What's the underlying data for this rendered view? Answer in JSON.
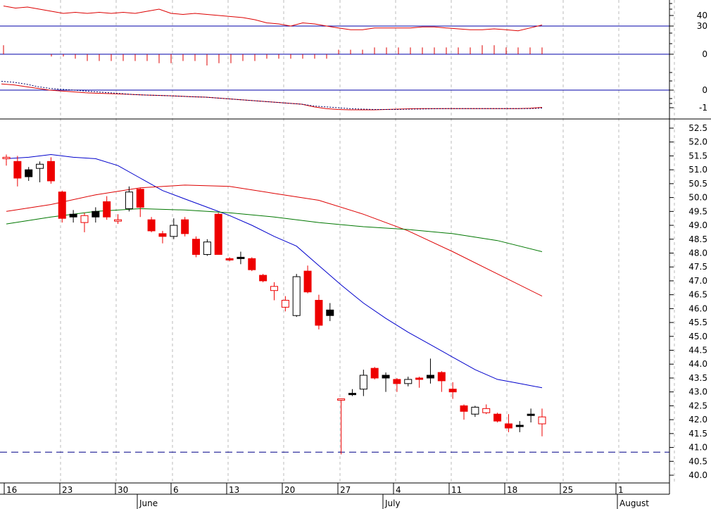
{
  "chart_data": [
    {
      "type": "line",
      "panel": "indicator-top",
      "y_ticks": [
        40,
        30,
        0
      ],
      "reference_lines": [
        30,
        0
      ],
      "series": [
        {
          "color": "#dd0000",
          "values": [
            49,
            47,
            48,
            46,
            44,
            42,
            43,
            42,
            43,
            42,
            43,
            42,
            44,
            46,
            42,
            41,
            42,
            41,
            40,
            39,
            38,
            36,
            33,
            32,
            30,
            33,
            32,
            30,
            28,
            26,
            26,
            28,
            28,
            28,
            28,
            29,
            29,
            28,
            27,
            26,
            26,
            27,
            26,
            25,
            28,
            31
          ],
          "column_values": [
            4,
            0,
            0,
            0,
            -1,
            -1,
            -2,
            -3,
            -3,
            -3,
            -3,
            -3,
            -3,
            -4,
            -4,
            -3,
            -3,
            -5,
            -4,
            -4,
            -3,
            -3,
            -2,
            -2,
            -2,
            -2,
            -2,
            -2,
            2,
            2,
            2,
            3,
            3,
            3,
            3,
            3,
            3,
            3,
            3,
            3,
            4,
            4,
            3,
            3,
            3,
            3
          ]
        }
      ]
    },
    {
      "type": "line",
      "panel": "indicator-middle",
      "y_ticks": [
        0,
        -1
      ],
      "reference_lines": [
        0
      ],
      "series": [
        {
          "color": "#dd0000",
          "style": "solid",
          "values": [
            0.35,
            0.3,
            0.2,
            0.1,
            0.0,
            -0.05,
            -0.1,
            -0.15,
            -0.18,
            -0.2,
            -0.22,
            -0.25,
            -0.28,
            -0.3,
            -0.32,
            -0.35,
            -0.38,
            -0.4,
            -0.45,
            -0.5,
            -0.55,
            -0.6,
            -0.65,
            -0.7,
            -0.75,
            -0.8,
            -0.95,
            -1.05,
            -1.1,
            -1.12,
            -1.12,
            -1.12,
            -1.1,
            -1.08,
            -1.06,
            -1.05,
            -1.05,
            -1.05,
            -1.05,
            -1.05,
            -1.05,
            -1.05,
            -1.05,
            -1.05,
            -1.03,
            -0.98
          ]
        },
        {
          "color": "#000066",
          "style": "dotted",
          "values": [
            0.5,
            0.45,
            0.35,
            0.2,
            0.1,
            0.05,
            0.0,
            -0.05,
            -0.1,
            -0.15,
            -0.2,
            -0.25,
            -0.28,
            -0.3,
            -0.32,
            -0.35,
            -0.38,
            -0.4,
            -0.45,
            -0.5,
            -0.55,
            -0.6,
            -0.65,
            -0.7,
            -0.75,
            -0.8,
            -0.9,
            -0.95,
            -1.0,
            -1.05,
            -1.08,
            -1.1,
            -1.1,
            -1.1,
            -1.08,
            -1.07,
            -1.06,
            -1.05,
            -1.05,
            -1.05,
            -1.05,
            -1.05,
            -1.05,
            -1.05,
            -1.05,
            -1.02
          ]
        }
      ]
    },
    {
      "type": "candlestick",
      "panel": "price",
      "y_ticks": [
        "52.5",
        "52.0",
        "51.5",
        "51.0",
        "50.5",
        "50.0",
        "49.5",
        "49.0",
        "48.5",
        "48.0",
        "47.5",
        "47.0",
        "46.5",
        "46.0",
        "45.5",
        "45.0",
        "44.5",
        "44.0",
        "43.5",
        "43.0",
        "42.5",
        "42.0",
        "41.5",
        "41.0",
        "40.5",
        "40.0"
      ],
      "ylim": [
        39.9,
        52.8
      ],
      "day_labels": [
        "16",
        "23",
        "30",
        "6",
        "13",
        "20",
        "27",
        "4",
        "11",
        "18",
        "25",
        "1"
      ],
      "month_labels": [
        "June",
        "July",
        "August"
      ],
      "support_line": 40.83,
      "candles": [
        {
          "o": 51.45,
          "h": 51.55,
          "l": 51.15,
          "c": 51.4,
          "color": "red-hollow"
        },
        {
          "o": 51.3,
          "h": 51.5,
          "l": 50.4,
          "c": 50.7,
          "color": "red"
        },
        {
          "o": 50.75,
          "h": 51.1,
          "l": 50.6,
          "c": 51.0,
          "color": "black"
        },
        {
          "o": 51.05,
          "h": 51.3,
          "l": 50.55,
          "c": 51.2,
          "color": "hollow"
        },
        {
          "o": 51.3,
          "h": 51.45,
          "l": 50.5,
          "c": 50.6,
          "color": "red"
        },
        {
          "o": 50.2,
          "h": 50.25,
          "l": 49.1,
          "c": 49.25,
          "color": "red"
        },
        {
          "o": 49.3,
          "h": 49.55,
          "l": 49.1,
          "c": 49.4,
          "color": "black"
        },
        {
          "o": 49.35,
          "h": 49.45,
          "l": 48.75,
          "c": 49.1,
          "color": "red-hollow"
        },
        {
          "o": 49.3,
          "h": 49.65,
          "l": 49.1,
          "c": 49.5,
          "color": "black"
        },
        {
          "o": 49.85,
          "h": 50.05,
          "l": 49.2,
          "c": 49.3,
          "color": "red"
        },
        {
          "o": 49.2,
          "h": 49.4,
          "l": 49.05,
          "c": 49.2,
          "color": "red-hollow"
        },
        {
          "o": 49.6,
          "h": 50.4,
          "l": 49.5,
          "c": 50.2,
          "color": "hollow"
        },
        {
          "o": 50.3,
          "h": 50.35,
          "l": 49.3,
          "c": 49.65,
          "color": "red"
        },
        {
          "o": 49.2,
          "h": 49.3,
          "l": 48.75,
          "c": 48.8,
          "color": "red"
        },
        {
          "o": 48.7,
          "h": 48.8,
          "l": 48.35,
          "c": 48.6,
          "color": "red"
        },
        {
          "o": 48.6,
          "h": 49.25,
          "l": 48.5,
          "c": 49.0,
          "color": "hollow"
        },
        {
          "o": 49.2,
          "h": 49.3,
          "l": 48.6,
          "c": 48.7,
          "color": "red"
        },
        {
          "o": 48.5,
          "h": 48.6,
          "l": 47.85,
          "c": 47.95,
          "color": "red"
        },
        {
          "o": 47.95,
          "h": 48.5,
          "l": 47.9,
          "c": 48.4,
          "color": "hollow"
        },
        {
          "o": 49.4,
          "h": 49.45,
          "l": 47.95,
          "c": 47.95,
          "color": "red"
        },
        {
          "o": 47.8,
          "h": 47.85,
          "l": 47.7,
          "c": 47.75,
          "color": "red"
        },
        {
          "o": 47.8,
          "h": 48.05,
          "l": 47.6,
          "c": 47.85,
          "color": "black"
        },
        {
          "o": 47.8,
          "h": 47.85,
          "l": 47.35,
          "c": 47.4,
          "color": "red"
        },
        {
          "o": 47.2,
          "h": 47.25,
          "l": 46.95,
          "c": 47.0,
          "color": "red"
        },
        {
          "o": 46.65,
          "h": 46.95,
          "l": 46.3,
          "c": 46.8,
          "color": "red-hollow"
        },
        {
          "o": 46.05,
          "h": 46.45,
          "l": 45.9,
          "c": 46.3,
          "color": "red-hollow"
        },
        {
          "o": 45.75,
          "h": 47.25,
          "l": 45.7,
          "c": 47.15,
          "color": "hollow"
        },
        {
          "o": 47.35,
          "h": 47.55,
          "l": 46.55,
          "c": 46.6,
          "color": "red"
        },
        {
          "o": 46.3,
          "h": 46.5,
          "l": 45.25,
          "c": 45.4,
          "color": "red"
        },
        {
          "o": 45.75,
          "h": 46.2,
          "l": 45.55,
          "c": 45.95,
          "color": "black"
        },
        {
          "o": 42.7,
          "h": 42.75,
          "l": 40.75,
          "c": 42.75,
          "color": "red-hollow"
        },
        {
          "o": 42.9,
          "h": 43.1,
          "l": 42.85,
          "c": 42.95,
          "color": "black"
        },
        {
          "o": 43.1,
          "h": 43.8,
          "l": 42.85,
          "c": 43.6,
          "color": "hollow"
        },
        {
          "o": 43.85,
          "h": 43.9,
          "l": 43.45,
          "c": 43.5,
          "color": "red"
        },
        {
          "o": 43.6,
          "h": 43.7,
          "l": 43.0,
          "c": 43.5,
          "color": "black"
        },
        {
          "o": 43.45,
          "h": 43.5,
          "l": 43.0,
          "c": 43.3,
          "color": "red"
        },
        {
          "o": 43.3,
          "h": 43.55,
          "l": 43.2,
          "c": 43.45,
          "color": "hollow"
        },
        {
          "o": 43.5,
          "h": 43.55,
          "l": 43.15,
          "c": 43.45,
          "color": "red"
        },
        {
          "o": 43.5,
          "h": 44.2,
          "l": 43.3,
          "c": 43.6,
          "color": "black"
        },
        {
          "o": 43.7,
          "h": 43.75,
          "l": 43.0,
          "c": 43.4,
          "color": "red"
        },
        {
          "o": 43.1,
          "h": 43.35,
          "l": 42.75,
          "c": 43.0,
          "color": "red"
        },
        {
          "o": 42.5,
          "h": 42.55,
          "l": 42.0,
          "c": 42.3,
          "color": "red"
        },
        {
          "o": 42.2,
          "h": 42.5,
          "l": 42.1,
          "c": 42.45,
          "color": "hollow"
        },
        {
          "o": 42.4,
          "h": 42.55,
          "l": 42.2,
          "c": 42.25,
          "color": "red-hollow"
        },
        {
          "o": 42.2,
          "h": 42.25,
          "l": 41.9,
          "c": 41.95,
          "color": "red"
        },
        {
          "o": 41.85,
          "h": 42.2,
          "l": 41.55,
          "c": 41.7,
          "color": "red"
        },
        {
          "o": 41.75,
          "h": 41.95,
          "l": 41.55,
          "c": 41.8,
          "color": "black"
        },
        {
          "o": 42.15,
          "h": 42.4,
          "l": 41.9,
          "c": 42.2,
          "color": "black"
        },
        {
          "o": 42.1,
          "h": 42.4,
          "l": 41.4,
          "c": 41.85,
          "color": "red-hollow"
        }
      ],
      "series": [
        {
          "color": "#0000cc",
          "x_index": [
            0,
            2,
            4,
            6,
            8,
            10,
            12,
            14,
            16,
            18,
            20,
            22,
            24,
            26,
            28,
            30,
            32,
            34,
            36,
            38,
            40,
            42,
            44,
            46,
            48
          ],
          "values": [
            51.4,
            51.45,
            51.55,
            51.45,
            51.4,
            51.15,
            50.7,
            50.25,
            49.95,
            49.65,
            49.35,
            49.0,
            48.6,
            48.25,
            47.55,
            46.85,
            46.2,
            45.65,
            45.15,
            44.7,
            44.25,
            43.8,
            43.45,
            43.3,
            43.15
          ]
        },
        {
          "color": "#dd0000",
          "x_index": [
            0,
            4,
            8,
            12,
            16,
            20,
            24,
            28,
            32,
            36,
            40,
            44,
            48
          ],
          "values": [
            49.5,
            49.75,
            50.1,
            50.35,
            50.45,
            50.4,
            50.15,
            49.9,
            49.4,
            48.8,
            48.05,
            47.25,
            46.45
          ]
        },
        {
          "color": "#007700",
          "x_index": [
            0,
            4,
            8,
            12,
            16,
            20,
            24,
            28,
            32,
            36,
            40,
            44,
            48
          ],
          "values": [
            49.05,
            49.3,
            49.5,
            49.6,
            49.55,
            49.45,
            49.3,
            49.1,
            48.95,
            48.85,
            48.7,
            48.45,
            48.05
          ]
        }
      ]
    }
  ]
}
